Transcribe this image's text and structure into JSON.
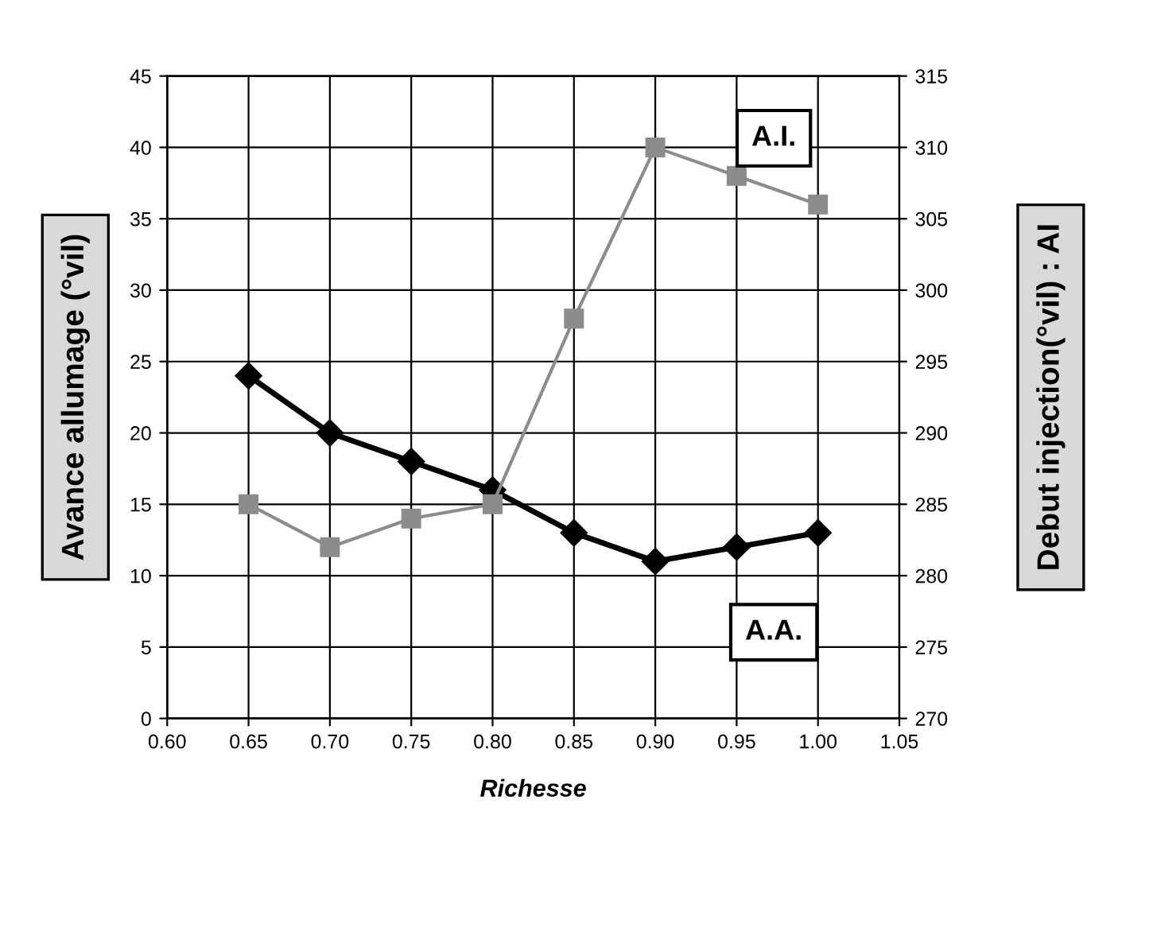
{
  "chart_data": {
    "type": "line",
    "xlabel": "Richesse",
    "ylabel": "Avance allumage (°vil)",
    "y2label": "Debut injection(°vil) : AI",
    "x": [
      0.65,
      0.7,
      0.75,
      0.8,
      0.85,
      0.9,
      0.95,
      1.0
    ],
    "series": [
      {
        "name": "A.A.",
        "color": "#000000",
        "marker": "diamond",
        "values": [
          24,
          20,
          18,
          16,
          13,
          11,
          12,
          13
        ]
      },
      {
        "name": "A.I.",
        "color": "#8c8c8c",
        "marker": "square",
        "axis": "y2",
        "values": [
          285,
          282,
          284,
          285,
          298,
          310,
          308,
          306
        ]
      }
    ],
    "xlim": [
      0.6,
      1.05
    ],
    "xticks": [
      {
        "value": 0.6,
        "label": "0.60"
      },
      {
        "value": 0.65,
        "label": "0.65"
      },
      {
        "value": 0.7,
        "label": "0.70"
      },
      {
        "value": 0.75,
        "label": "0.75"
      },
      {
        "value": 0.8,
        "label": "0.80"
      },
      {
        "value": 0.85,
        "label": "0.85"
      },
      {
        "value": 0.9,
        "label": "0.90"
      },
      {
        "value": 0.95,
        "label": "0.95"
      },
      {
        "value": 1.0,
        "label": "1.00"
      },
      {
        "value": 1.05,
        "label": "1.05"
      }
    ],
    "ylim": [
      0,
      45
    ],
    "yticks": [
      0,
      5,
      10,
      15,
      20,
      25,
      30,
      35,
      40,
      45
    ],
    "y2lim": [
      270,
      315
    ],
    "y2ticks": [
      270,
      275,
      280,
      285,
      290,
      295,
      300,
      305,
      310,
      315
    ],
    "grid": true,
    "legend": false
  }
}
